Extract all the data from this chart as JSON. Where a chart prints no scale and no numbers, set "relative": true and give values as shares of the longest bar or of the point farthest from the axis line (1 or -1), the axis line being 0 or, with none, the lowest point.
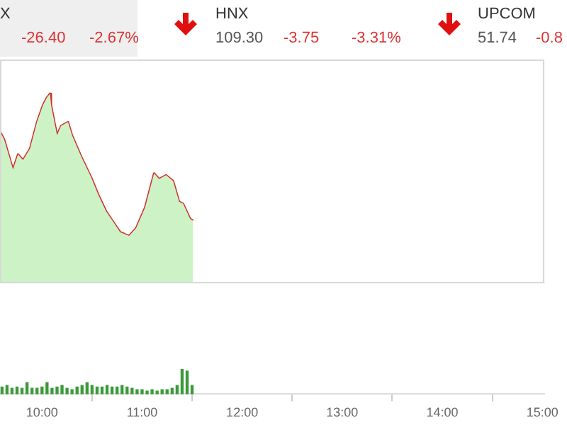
{
  "chart_data": [
    {
      "type": "area",
      "relative": true,
      "annotations": [
        "X",
        "-26.40",
        "-2.67%",
        "HNX",
        "109.30",
        "-3.75",
        "-3.31%",
        "UPCOM",
        "51.74",
        "-0.8"
      ],
      "xlim": [
        9.58,
        15.02
      ],
      "tick_labels": false,
      "marker": "none",
      "series": [
        {
          "color": "#cdf2c6",
          "x": [
            9.58,
            9.62,
            9.71,
            9.76,
            9.81,
            9.88,
            9.95,
            10.01,
            10.05,
            10.08,
            10.09,
            10.15,
            10.19,
            10.26,
            10.3,
            10.39,
            10.49,
            10.56,
            10.64,
            10.73,
            10.78,
            10.87,
            10.94,
            11.03,
            11.12,
            11.17,
            11.24,
            11.31,
            11.37,
            11.41,
            11.48,
            11.51
          ],
          "values": [
            0.8,
            0.76,
            0.6,
            0.68,
            0.65,
            0.71,
            0.85,
            0.94,
            0.98,
            1,
            0.94,
            0.78,
            0.83,
            0.85,
            0.78,
            0.67,
            0.56,
            0.47,
            0.38,
            0.31,
            0.27,
            0.25,
            0.29,
            0.4,
            0.58,
            0.55,
            0.57,
            0.54,
            0.43,
            0.42,
            0.34,
            0.33
          ]
        },
        {
          "type": "line",
          "color": "#d0302a",
          "x": [
            9.58,
            9.62,
            9.71,
            9.76,
            9.81,
            9.88,
            9.95,
            10.01,
            10.05,
            10.08,
            10.09,
            10.15,
            10.19,
            10.26,
            10.3,
            10.39,
            10.49,
            10.56,
            10.64,
            10.73,
            10.78,
            10.87,
            10.94,
            11.03,
            11.12,
            11.17,
            11.24,
            11.31,
            11.37,
            11.41,
            11.48,
            11.51
          ],
          "values": [
            0.8,
            0.76,
            0.6,
            0.68,
            0.65,
            0.71,
            0.85,
            0.94,
            0.98,
            1,
            0.94,
            0.78,
            0.83,
            0.85,
            0.78,
            0.67,
            0.56,
            0.47,
            0.38,
            0.31,
            0.27,
            0.25,
            0.29,
            0.4,
            0.58,
            0.55,
            0.57,
            0.54,
            0.43,
            0.42,
            0.34,
            0.33
          ]
        }
      ]
    },
    {
      "type": "bar",
      "relative": true,
      "xlim": [
        9.58,
        15.02
      ],
      "xticks": [
        {
          "value": 10,
          "label": "10:00"
        },
        {
          "value": 11,
          "label": "11:00"
        },
        {
          "value": 12,
          "label": "12:00"
        },
        {
          "value": 13,
          "label": "13:00"
        },
        {
          "value": 14,
          "label": "14:00"
        },
        {
          "value": 15,
          "label": "15:00"
        }
      ],
      "tick_labels": "x",
      "x": [
        9.6,
        9.65,
        9.7,
        9.75,
        9.8,
        9.85,
        9.9,
        9.95,
        10,
        10.05,
        10.1,
        10.15,
        10.2,
        10.25,
        10.3,
        10.35,
        10.4,
        10.45,
        10.5,
        10.55,
        10.6,
        10.65,
        10.7,
        10.75,
        10.8,
        10.85,
        10.9,
        10.95,
        11,
        11.05,
        11.1,
        11.15,
        11.2,
        11.25,
        11.3,
        11.35,
        11.4,
        11.45,
        11.5
      ],
      "series": [
        {
          "color": "#3a9a3a",
          "values": [
            0.29,
            0.35,
            0.24,
            0.29,
            0.24,
            0.47,
            0.24,
            0.24,
            0.29,
            0.47,
            0.24,
            0.29,
            0.35,
            0.24,
            0.18,
            0.29,
            0.35,
            0.47,
            0.35,
            0.29,
            0.29,
            0.35,
            0.29,
            0.29,
            0.35,
            0.29,
            0.24,
            0.18,
            0.18,
            0.12,
            0.18,
            0.12,
            0.18,
            0.18,
            0.24,
            0.35,
            1,
            0.94,
            0.35
          ]
        }
      ]
    }
  ]
}
